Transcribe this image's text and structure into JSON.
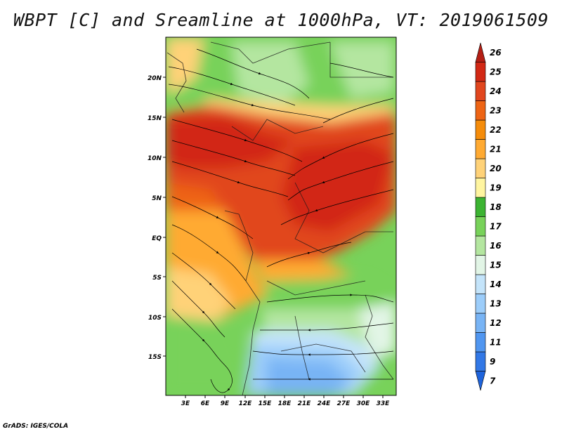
{
  "title": "WBPT [C] and Sreamline at 1000hPa, VT: 2019061509",
  "footer": "GrADS: IGES/COLA",
  "map": {
    "lat_labels": [
      "20N",
      "15N",
      "10N",
      "5N",
      "EQ",
      "5S",
      "10S",
      "15S"
    ],
    "lon_labels": [
      "3E",
      "6E",
      "9E",
      "12E",
      "15E",
      "18E",
      "21E",
      "24E",
      "27E",
      "30E",
      "33E"
    ]
  },
  "colorbar": {
    "levels": [
      "7",
      "9",
      "11",
      "12",
      "13",
      "14",
      "15",
      "16",
      "17",
      "18",
      "19",
      "20",
      "21",
      "22",
      "23",
      "24",
      "25",
      "26"
    ],
    "colors": [
      "#1e64dc",
      "#3278e6",
      "#5096f0",
      "#78b4f5",
      "#9ccdfa",
      "#c4e4fa",
      "#e2f5e6",
      "#b4e6a0",
      "#78d25a",
      "#3cb432",
      "#fff5a0",
      "#ffd278",
      "#ffaa32",
      "#f58c0a",
      "#ee6414",
      "#e1461e",
      "#d22814",
      "#b41e14"
    ]
  }
}
